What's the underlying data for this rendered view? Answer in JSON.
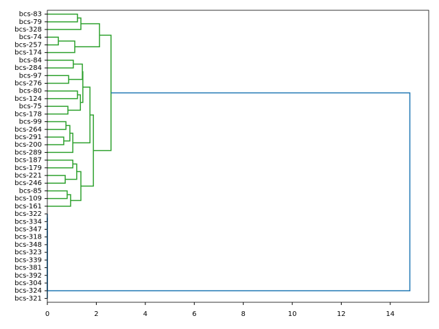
{
  "chart_data": {
    "type": "dendrogram",
    "leaves": [
      "bcs-83",
      "bcs-79",
      "bcs-328",
      "bcs-74",
      "bcs-257",
      "bcs-174",
      "bcs-84",
      "bcs-284",
      "bcs-97",
      "bcs-276",
      "bcs-80",
      "bcs-124",
      "bcs-75",
      "bcs-178",
      "bcs-99",
      "bcs-264",
      "bcs-291",
      "bcs-200",
      "bcs-289",
      "bcs-187",
      "bcs-179",
      "bcs-221",
      "bcs-246",
      "bcs-85",
      "bcs-109",
      "bcs-161",
      "bcs-322",
      "bcs-334",
      "bcs-347",
      "bcs-318",
      "bcs-348",
      "bcs-323",
      "bcs-339",
      "bcs-381",
      "bcs-392",
      "bcs-304",
      "bcs-324",
      "bcs-321"
    ],
    "merges": [
      {
        "children": [
          0,
          1
        ],
        "height": 1.23,
        "color": "#2ca02c"
      },
      {
        "children": [
          38,
          2
        ],
        "height": 1.37,
        "color": "#2ca02c"
      },
      {
        "children": [
          3,
          4
        ],
        "height": 0.45,
        "color": "#2ca02c"
      },
      {
        "children": [
          40,
          5
        ],
        "height": 1.12,
        "color": "#2ca02c"
      },
      {
        "children": [
          39,
          41
        ],
        "height": 2.13,
        "color": "#2ca02c"
      },
      {
        "children": [
          6,
          7
        ],
        "height": 1.06,
        "color": "#2ca02c"
      },
      {
        "children": [
          8,
          9
        ],
        "height": 0.87,
        "color": "#2ca02c"
      },
      {
        "children": [
          43,
          44
        ],
        "height": 1.43,
        "color": "#2ca02c"
      },
      {
        "children": [
          10,
          11
        ],
        "height": 1.23,
        "color": "#2ca02c"
      },
      {
        "children": [
          12,
          13
        ],
        "height": 0.84,
        "color": "#2ca02c"
      },
      {
        "children": [
          46,
          47
        ],
        "height": 1.35,
        "color": "#2ca02c"
      },
      {
        "children": [
          45,
          48
        ],
        "height": 1.45,
        "color": "#2ca02c"
      },
      {
        "children": [
          14,
          15
        ],
        "height": 0.76,
        "color": "#2ca02c"
      },
      {
        "children": [
          16,
          17
        ],
        "height": 0.67,
        "color": "#2ca02c"
      },
      {
        "children": [
          50,
          51
        ],
        "height": 0.92,
        "color": "#2ca02c"
      },
      {
        "children": [
          52,
          18
        ],
        "height": 1.04,
        "color": "#2ca02c"
      },
      {
        "children": [
          49,
          53
        ],
        "height": 1.74,
        "color": "#2ca02c"
      },
      {
        "children": [
          19,
          20
        ],
        "height": 1.04,
        "color": "#2ca02c"
      },
      {
        "children": [
          21,
          22
        ],
        "height": 0.73,
        "color": "#2ca02c"
      },
      {
        "children": [
          55,
          56
        ],
        "height": 1.2,
        "color": "#2ca02c"
      },
      {
        "children": [
          23,
          24
        ],
        "height": 0.81,
        "color": "#2ca02c"
      },
      {
        "children": [
          58,
          25
        ],
        "height": 0.95,
        "color": "#2ca02c"
      },
      {
        "children": [
          57,
          59
        ],
        "height": 1.37,
        "color": "#2ca02c"
      },
      {
        "children": [
          54,
          60
        ],
        "height": 1.88,
        "color": "#2ca02c"
      },
      {
        "children": [
          42,
          61
        ],
        "height": 2.6,
        "color": "#2ca02c"
      },
      {
        "children": [
          26,
          27
        ],
        "height": 0,
        "color": "#1f77b4"
      },
      {
        "children": [
          63,
          28
        ],
        "height": 0,
        "color": "#1f77b4"
      },
      {
        "children": [
          64,
          29
        ],
        "height": 0,
        "color": "#1f77b4"
      },
      {
        "children": [
          65,
          30
        ],
        "height": 0,
        "color": "#1f77b4"
      },
      {
        "children": [
          66,
          31
        ],
        "height": 0,
        "color": "#1f77b4"
      },
      {
        "children": [
          67,
          32
        ],
        "height": 0,
        "color": "#1f77b4"
      },
      {
        "children": [
          68,
          33
        ],
        "height": 0,
        "color": "#1f77b4"
      },
      {
        "children": [
          69,
          34
        ],
        "height": 0,
        "color": "#1f77b4"
      },
      {
        "children": [
          70,
          35
        ],
        "height": 0,
        "color": "#1f77b4"
      },
      {
        "children": [
          71,
          36
        ],
        "height": 0,
        "color": "#1f77b4"
      },
      {
        "children": [
          72,
          37
        ],
        "height": 0,
        "color": "#1f77b4"
      },
      {
        "children": [
          62,
          73
        ],
        "height": 14.8,
        "color": "#1f77b4"
      }
    ],
    "xlim": [
      0,
      15.57
    ],
    "xticks": [
      0,
      2,
      4,
      6,
      8,
      10,
      12,
      14
    ]
  }
}
